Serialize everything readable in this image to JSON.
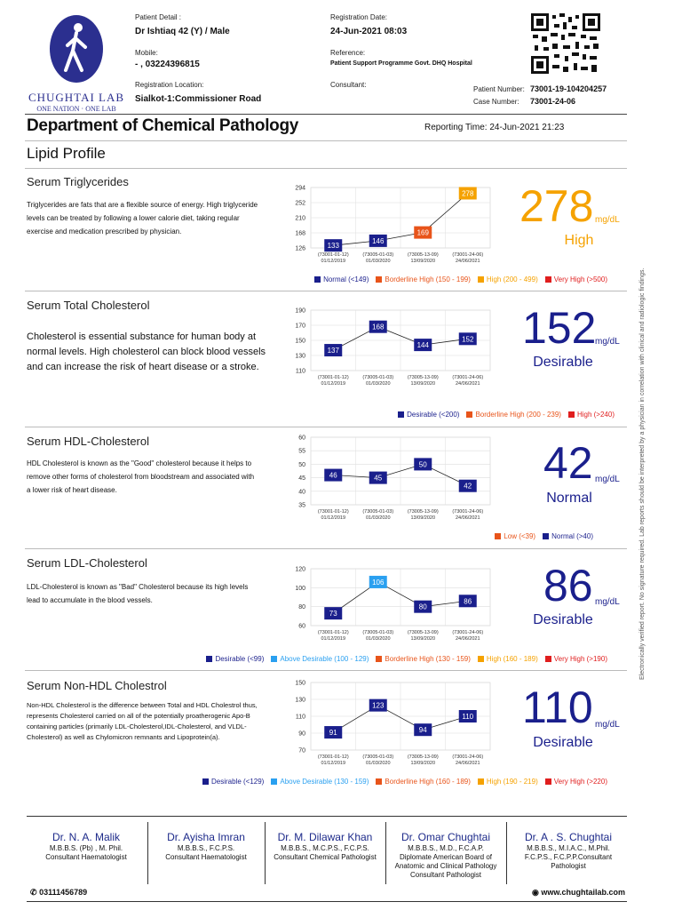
{
  "lab": {
    "name": "CHUGHTAI LAB",
    "tagline": "ONE NATION · ONE LAB",
    "phone": "03111456789",
    "website": "www.chughtailab.com"
  },
  "patient": {
    "detail_label": "Patient Detail :",
    "detail": "Dr Ishtiaq  42 (Y) / Male",
    "mobile_label": "Mobile:",
    "mobile": "- , 03224396815",
    "reg_loc_label": "Registration Location:",
    "reg_loc": "Sialkot-1:Commissioner Road",
    "reg_date_label": "Registration Date:",
    "reg_date": "24-Jun-2021 08:03",
    "reference_label": "Reference:",
    "reference": "Patient Support Programme Govt. DHQ Hospital",
    "consultant_label": "Consultant:",
    "patient_number_label": "Patient Number:",
    "patient_number": "73001-19-104204257",
    "case_number_label": "Case Number:",
    "case_number": "73001-24-06"
  },
  "report": {
    "department": "Department of Chemical Pathology",
    "reporting_time_label": "Reporting Time:",
    "reporting_time": "24-Jun-2021 21:23",
    "profile": "Lipid Profile"
  },
  "side_note": "Electronically verified report. No signature required. Lab reports should be interpreted by a physician in correlation with clinical and radiologic findings.",
  "tests": [
    {
      "title": "Serum Triglycerides",
      "description": "Triglycerides are fats that are a flexible source of energy. High triglyceride levels can be treated by following a lower calorie diet, taking regular exercise and medication prescribed by physician.",
      "value": "278",
      "unit": "mg/dL",
      "status": "High",
      "color": "#f5a200",
      "chart_data": {
        "type": "line",
        "yticks": [
          126,
          168,
          210,
          252,
          294
        ],
        "ylim": [
          126,
          294
        ],
        "x": [
          "(73001-01-12) 01/12/2019",
          "(73005-01-03) 01/03/2020",
          "(73005-13-09) 13/09/2020",
          "(73001-24-06) 24/06/2021"
        ],
        "values": [
          133,
          146,
          169,
          278
        ],
        "colors": [
          "#1a1f8c",
          "#1a1f8c",
          "#e8541a",
          "#f5a200"
        ]
      },
      "legend": [
        {
          "label": "Normal (<149)",
          "color": "#1a1f8c"
        },
        {
          "label": "Borderline High (150 - 199)",
          "color": "#e8541a"
        },
        {
          "label": "High (200 - 499)",
          "color": "#f5a200"
        },
        {
          "label": "Very High (>500)",
          "color": "#e01e1e"
        }
      ]
    },
    {
      "title": "Serum Total Cholesterol",
      "description": "Cholesterol is essential substance for human body at normal levels. High cholesterol can block blood vessels and can increase the risk of heart disease or a stroke.",
      "value": "152",
      "unit": "mg/dL",
      "status": "Desirable",
      "color": "#1a1f8c",
      "chart_data": {
        "type": "line",
        "yticks": [
          110,
          130,
          150,
          170,
          190
        ],
        "ylim": [
          110,
          190
        ],
        "x": [
          "(73001-01-12) 01/12/2019",
          "(73005-01-03) 01/03/2020",
          "(73005-13-09) 13/09/2020",
          "(73001-24-06) 24/06/2021"
        ],
        "values": [
          137,
          168,
          144,
          152
        ],
        "colors": [
          "#1a1f8c",
          "#1a1f8c",
          "#1a1f8c",
          "#1a1f8c"
        ]
      },
      "legend": [
        {
          "label": "Desirable (<200)",
          "color": "#1a1f8c"
        },
        {
          "label": "Borderline High (200 - 239)",
          "color": "#e8541a"
        },
        {
          "label": "High (>240)",
          "color": "#e01e1e"
        }
      ]
    },
    {
      "title": "Serum HDL-Cholesterol",
      "description": "HDL Cholesterol is known as the \"Good\" cholesterol because it helps to remove other forms of cholesterol from bloodstream and associated with a lower risk of heart disease.",
      "value": "42",
      "unit": "mg/dL",
      "status": "Normal",
      "color": "#1a1f8c",
      "chart_data": {
        "type": "line",
        "yticks": [
          35,
          40,
          45,
          50,
          55,
          60
        ],
        "ylim": [
          35,
          60
        ],
        "x": [
          "(73001-01-12) 01/12/2019",
          "(73005-01-03) 01/03/2020",
          "(73005-13-09) 13/09/2020",
          "(73001-24-06) 24/06/2021"
        ],
        "values": [
          46,
          45,
          50,
          42
        ],
        "colors": [
          "#1a1f8c",
          "#1a1f8c",
          "#1a1f8c",
          "#1a1f8c"
        ]
      },
      "legend": [
        {
          "label": "Low (<39)",
          "color": "#e8541a"
        },
        {
          "label": "Normal (>40)",
          "color": "#1a1f8c"
        }
      ]
    },
    {
      "title": "Serum LDL-Cholesterol",
      "description": "LDL-Cholesterol is known as \"Bad\" Cholesterol because its high levels lead  to accumulate in the blood vessels.",
      "value": "86",
      "unit": "mg/dL",
      "status": "Desirable",
      "color": "#1a1f8c",
      "chart_data": {
        "type": "line",
        "yticks": [
          60,
          80,
          100,
          120
        ],
        "ylim": [
          60,
          120
        ],
        "x": [
          "(73001-01-12) 01/12/2019",
          "(73005-01-03) 01/03/2020",
          "(73005-13-09) 13/09/2020",
          "(73001-24-06) 24/06/2021"
        ],
        "values": [
          73,
          106,
          80,
          86
        ],
        "colors": [
          "#1a1f8c",
          "#2aa0f0",
          "#1a1f8c",
          "#1a1f8c"
        ]
      },
      "legend": [
        {
          "label": "Desirable (<99)",
          "color": "#1a1f8c"
        },
        {
          "label": "Above Desirable (100 - 129)",
          "color": "#2aa0f0"
        },
        {
          "label": "Borderline High (130 - 159)",
          "color": "#e8541a"
        },
        {
          "label": "High (160 - 189)",
          "color": "#f5a200"
        },
        {
          "label": "Very High (>190)",
          "color": "#e01e1e"
        }
      ]
    },
    {
      "title": "Serum Non-HDL Cholestrol",
      "description": "Non-HDL Cholesterol is the difference between Total and HDL Cholestrol thus, represents Cholesterol carried on all of the potentially proatherogenic Apo-B containing particles (primarily LDL-Cholesterol,IDL-Cholesterol, and VLDL-Cholesterol) as well as Chylomicron remnants and Lipoprotein(a).",
      "value": "110",
      "unit": "mg/dL",
      "status": "Desirable",
      "color": "#1a1f8c",
      "chart_data": {
        "type": "line",
        "yticks": [
          70,
          90,
          110,
          130,
          150
        ],
        "ylim": [
          70,
          150
        ],
        "x": [
          "(73001-01-12) 01/12/2019",
          "(73005-01-03) 01/03/2020",
          "(73005-13-09) 13/09/2020",
          "(73001-24-06) 24/06/2021"
        ],
        "values": [
          91,
          123,
          94,
          110
        ],
        "colors": [
          "#1a1f8c",
          "#1a1f8c",
          "#1a1f8c",
          "#1a1f8c"
        ]
      },
      "legend": [
        {
          "label": "Desirable (<129)",
          "color": "#1a1f8c"
        },
        {
          "label": "Above Desirable (130 - 159)",
          "color": "#2aa0f0"
        },
        {
          "label": "Borderline High (160 - 189)",
          "color": "#e8541a"
        },
        {
          "label": "High (190 - 219)",
          "color": "#f5a200"
        },
        {
          "label": "Very High (>220)",
          "color": "#e01e1e"
        }
      ]
    }
  ],
  "doctors": [
    {
      "name": "Dr. N. A. Malik",
      "qual": "M.B.B.S. (Pb) , M. Phil.",
      "role": "Consultant Haematologist"
    },
    {
      "name": "Dr. Ayisha Imran",
      "qual": "M.B.B.S., F.C.P.S.",
      "role": "Consultant Haematologist"
    },
    {
      "name": "Dr. M. Dilawar Khan",
      "qual": "M.B.B.S., M.C.P.S., F.C.P.S.",
      "role": "Consultant Chemical Pathologist"
    },
    {
      "name": "Dr. Omar Chughtai",
      "qual": "M.B.B.S., M.D., F.C.A.P.",
      "role": "Diplomate American Board of Anatomic and Clinical Pathology Consultant Pathologist"
    },
    {
      "name": "Dr. A . S. Chughtai",
      "qual": "M.B.B.S., M.I.A.C., M.Phil.",
      "role": "F.C.P.S., F.C.P.P.Consultant Pathologist"
    }
  ]
}
